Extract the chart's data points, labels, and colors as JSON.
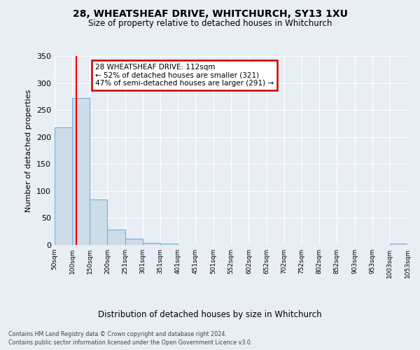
{
  "title": "28, WHEATSHEAF DRIVE, WHITCHURCH, SY13 1XU",
  "subtitle": "Size of property relative to detached houses in Whitchurch",
  "xlabel": "Distribution of detached houses by size in Whitchurch",
  "ylabel": "Number of detached properties",
  "bar_edges": [
    50,
    100,
    150,
    200,
    251,
    301,
    351,
    401,
    451,
    501,
    552,
    602,
    652,
    702,
    752,
    802,
    852,
    903,
    953,
    1003,
    1053
  ],
  "bar_heights": [
    218,
    272,
    84,
    29,
    12,
    4,
    2,
    0,
    0,
    0,
    0,
    0,
    0,
    0,
    0,
    0,
    0,
    0,
    0,
    2
  ],
  "tick_labels": [
    "50sqm",
    "100sqm",
    "150sqm",
    "200sqm",
    "251sqm",
    "301sqm",
    "351sqm",
    "401sqm",
    "451sqm",
    "501sqm",
    "552sqm",
    "602sqm",
    "652sqm",
    "702sqm",
    "752sqm",
    "802sqm",
    "852sqm",
    "903sqm",
    "953sqm",
    "1003sqm",
    "1053sqm"
  ],
  "bar_color": "#ccdce8",
  "bar_edge_color": "#6aaad4",
  "red_line_x": 112,
  "ylim": [
    0,
    350
  ],
  "yticks": [
    0,
    50,
    100,
    150,
    200,
    250,
    300,
    350
  ],
  "annotation_title": "28 WHEATSHEAF DRIVE: 112sqm",
  "annotation_line1": "← 52% of detached houses are smaller (321)",
  "annotation_line2": "47% of semi-detached houses are larger (291) →",
  "annotation_box_color": "#ffffff",
  "annotation_border_color": "#cc0000",
  "footer1": "Contains HM Land Registry data © Crown copyright and database right 2024.",
  "footer2": "Contains public sector information licensed under the Open Government Licence v3.0.",
  "background_color": "#e8eef4",
  "grid_color": "#ffffff"
}
